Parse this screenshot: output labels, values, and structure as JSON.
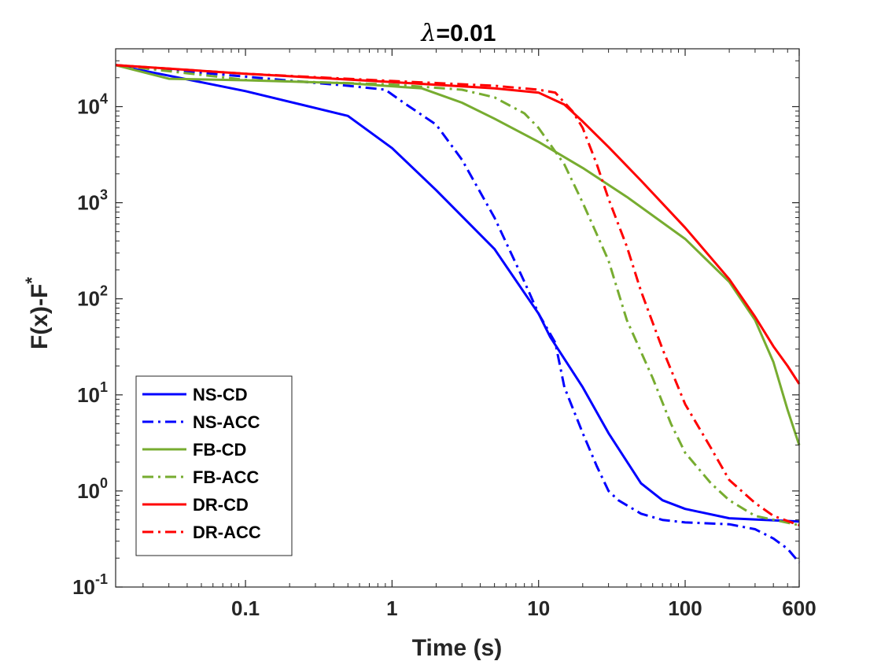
{
  "chart_data": {
    "type": "line",
    "title_symbol": "λ",
    "title_value": "=0.01",
    "xlabel": "Time (s)",
    "ylabel_main": "F(x)-F",
    "ylabel_sup": "*",
    "xscale": "log",
    "yscale": "log",
    "xlim": [
      0.013,
      600
    ],
    "ylim": [
      0.1,
      40000
    ],
    "grid": false,
    "legend_position": "bottom-left",
    "x_ticks": [
      {
        "value": 0.1,
        "label": "0.1"
      },
      {
        "value": 1,
        "label": "1"
      },
      {
        "value": 10,
        "label": "10"
      },
      {
        "value": 100,
        "label": "100"
      },
      {
        "value": 600,
        "label": "600"
      }
    ],
    "y_ticks": [
      {
        "value": 0.1,
        "base": "10",
        "exp": "-1"
      },
      {
        "value": 1,
        "base": "10",
        "exp": "0"
      },
      {
        "value": 10,
        "base": "10",
        "exp": "1"
      },
      {
        "value": 100,
        "base": "10",
        "exp": "2"
      },
      {
        "value": 1000,
        "base": "10",
        "exp": "3"
      },
      {
        "value": 10000,
        "base": "10",
        "exp": "4"
      }
    ],
    "series": [
      {
        "name": "NS-CD",
        "color": "#0000FF",
        "dash": "solid",
        "points": [
          [
            0.013,
            27000
          ],
          [
            0.03,
            21000
          ],
          [
            0.1,
            14500
          ],
          [
            0.5,
            8000
          ],
          [
            1,
            3700
          ],
          [
            2,
            1350
          ],
          [
            5,
            330
          ],
          [
            10,
            70
          ],
          [
            12,
            40
          ],
          [
            20,
            12
          ],
          [
            30,
            4
          ],
          [
            50,
            1.2
          ],
          [
            70,
            0.8
          ],
          [
            100,
            0.65
          ],
          [
            200,
            0.52
          ],
          [
            600,
            0.48
          ]
        ]
      },
      {
        "name": "NS-ACC",
        "color": "#0000FF",
        "dash": "dashdot",
        "points": [
          [
            0.013,
            27000
          ],
          [
            0.1,
            20500
          ],
          [
            0.5,
            16500
          ],
          [
            0.9,
            15000
          ],
          [
            1.2,
            11000
          ],
          [
            2,
            6500
          ],
          [
            3,
            2800
          ],
          [
            5,
            700
          ],
          [
            8,
            150
          ],
          [
            10,
            70
          ],
          [
            13,
            35
          ],
          [
            15,
            12
          ],
          [
            20,
            4
          ],
          [
            25,
            1.8
          ],
          [
            30,
            1.0
          ],
          [
            35,
            0.8
          ],
          [
            50,
            0.58
          ],
          [
            70,
            0.5
          ],
          [
            100,
            0.47
          ],
          [
            200,
            0.45
          ],
          [
            300,
            0.4
          ],
          [
            400,
            0.32
          ],
          [
            500,
            0.25
          ],
          [
            600,
            0.18
          ]
        ]
      },
      {
        "name": "FB-CD",
        "color": "#77AC30",
        "dash": "solid",
        "points": [
          [
            0.013,
            27000
          ],
          [
            0.03,
            19500
          ],
          [
            0.1,
            18800
          ],
          [
            0.5,
            17500
          ],
          [
            1.6,
            15500
          ],
          [
            3,
            11000
          ],
          [
            5,
            7500
          ],
          [
            10,
            4300
          ],
          [
            20,
            2300
          ],
          [
            40,
            1150
          ],
          [
            100,
            420
          ],
          [
            200,
            150
          ],
          [
            300,
            60
          ],
          [
            400,
            22
          ],
          [
            500,
            7
          ],
          [
            600,
            3
          ]
        ]
      },
      {
        "name": "FB-ACC",
        "color": "#77AC30",
        "dash": "dashdot",
        "points": [
          [
            0.013,
            27000
          ],
          [
            0.1,
            19000
          ],
          [
            1,
            17000
          ],
          [
            3,
            15000
          ],
          [
            5,
            12500
          ],
          [
            8,
            8500
          ],
          [
            10,
            6000
          ],
          [
            15,
            2500
          ],
          [
            20,
            1000
          ],
          [
            30,
            250
          ],
          [
            40,
            60
          ],
          [
            60,
            15
          ],
          [
            80,
            5
          ],
          [
            100,
            2.5
          ],
          [
            150,
            1.2
          ],
          [
            200,
            0.8
          ],
          [
            300,
            0.55
          ],
          [
            600,
            0.44
          ]
        ]
      },
      {
        "name": "DR-CD",
        "color": "#FF0000",
        "dash": "solid",
        "points": [
          [
            0.013,
            27000
          ],
          [
            0.1,
            22000
          ],
          [
            1,
            18000
          ],
          [
            5,
            15500
          ],
          [
            10,
            14000
          ],
          [
            15,
            10500
          ],
          [
            20,
            7000
          ],
          [
            30,
            3800
          ],
          [
            50,
            1700
          ],
          [
            100,
            550
          ],
          [
            200,
            160
          ],
          [
            300,
            65
          ],
          [
            400,
            32
          ],
          [
            500,
            20
          ],
          [
            600,
            13
          ]
        ]
      },
      {
        "name": "DR-ACC",
        "color": "#FF0000",
        "dash": "dashdot",
        "points": [
          [
            0.013,
            27000
          ],
          [
            0.1,
            22000
          ],
          [
            1,
            18500
          ],
          [
            5,
            16500
          ],
          [
            10,
            15000
          ],
          [
            13,
            14000
          ],
          [
            17,
            9000
          ],
          [
            20,
            6000
          ],
          [
            25,
            2500
          ],
          [
            30,
            1100
          ],
          [
            40,
            350
          ],
          [
            50,
            120
          ],
          [
            70,
            30
          ],
          [
            100,
            8
          ],
          [
            150,
            2.8
          ],
          [
            200,
            1.3
          ],
          [
            300,
            0.75
          ],
          [
            400,
            0.55
          ],
          [
            600,
            0.44
          ]
        ]
      }
    ]
  }
}
